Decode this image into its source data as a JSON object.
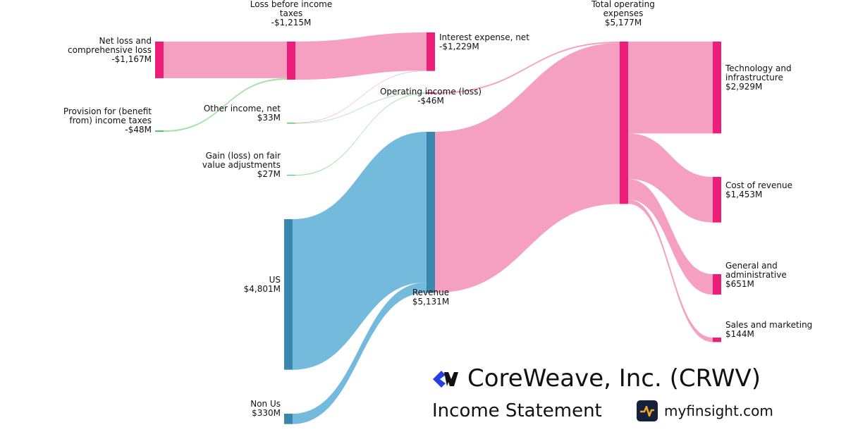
{
  "chart_data": {
    "type": "sankey",
    "nodes": [
      {
        "name": "Net loss and comprehensive loss",
        "value": -1167,
        "label": "-$1,167M",
        "color": "#ed1e79"
      },
      {
        "name": "Provision for (benefit from) income taxes",
        "value": -48,
        "label": "-$48M",
        "color": "#52c768"
      },
      {
        "name": "Loss before income taxes",
        "value": -1215,
        "label": "-$1,215M",
        "color": "#ed1e79"
      },
      {
        "name": "Interest expense, net",
        "value": -1229,
        "label": "-$1,229M",
        "color": "#ed1e79"
      },
      {
        "name": "Other income, net",
        "value": 33,
        "label": "$33M",
        "color": "#52c768"
      },
      {
        "name": "Gain (loss) on fair value adjustments",
        "value": 27,
        "label": "$27M",
        "color": "#52c768"
      },
      {
        "name": "Operating income (loss)",
        "value": -46,
        "label": "-$46M",
        "color": "#ed1e79"
      },
      {
        "name": "US",
        "value": 4801,
        "label": "$4,801M",
        "color": "#3a87ad"
      },
      {
        "name": "Non Us",
        "value": 330,
        "label": "$330M",
        "color": "#3a87ad"
      },
      {
        "name": "Revenue",
        "value": 5131,
        "label": "$5,131M",
        "color": "#3a87ad"
      },
      {
        "name": "Total operating expenses",
        "value": 5177,
        "label": "$5,177M",
        "color": "#ed1e79"
      },
      {
        "name": "Technology and infrastructure",
        "value": 2929,
        "label": "$2,929M",
        "color": "#ed1e79"
      },
      {
        "name": "Cost of revenue",
        "value": 1453,
        "label": "$1,453M",
        "color": "#ed1e79"
      },
      {
        "name": "General and administrative",
        "value": 651,
        "label": "$651M",
        "color": "#ed1e79"
      },
      {
        "name": "Sales and marketing",
        "value": 144,
        "label": "$144M",
        "color": "#ed1e79"
      }
    ],
    "links": [
      {
        "source": 0,
        "target": 2,
        "value": 1167,
        "color": "#f49bbd"
      },
      {
        "source": 1,
        "target": 2,
        "value": 48,
        "color": "#9fe0a5"
      },
      {
        "source": 2,
        "target": 3,
        "value": 1215,
        "color": "#f49bbd"
      },
      {
        "source": 4,
        "target": 3,
        "value": 14,
        "color": "#f49bbd"
      },
      {
        "source": 4,
        "target": 6,
        "value": 19,
        "color": "#9fe0a5"
      },
      {
        "source": 5,
        "target": 6,
        "value": 27,
        "color": "#9fe0a5"
      },
      {
        "source": 6,
        "target": 10,
        "value": 46,
        "color": "#f49bbd"
      },
      {
        "source": 7,
        "target": 9,
        "value": 4801,
        "color": "#6bb6db"
      },
      {
        "source": 8,
        "target": 9,
        "value": 330,
        "color": "#6bb6db"
      },
      {
        "source": 9,
        "target": 10,
        "value": 5131,
        "color": "#f49bbd"
      },
      {
        "source": 10,
        "target": 11,
        "value": 2929,
        "color": "#f49bbd"
      },
      {
        "source": 10,
        "target": 12,
        "value": 1453,
        "color": "#f49bbd"
      },
      {
        "source": 10,
        "target": 13,
        "value": 651,
        "color": "#f49bbd"
      },
      {
        "source": 10,
        "target": 14,
        "value": 144,
        "color": "#f49bbd"
      }
    ]
  },
  "branding": {
    "company": "CoreWeave, Inc. (CRWV)",
    "statement": "Income Statement",
    "source": "myfinsight.com"
  }
}
